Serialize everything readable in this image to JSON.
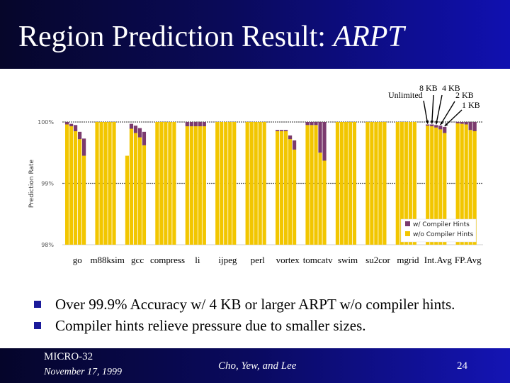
{
  "slide": {
    "title_main": "Region Prediction Result: ",
    "title_italic": "ARPT",
    "bullets": [
      "Over 99.9% Accuracy w/ 4 KB or larger ARPT w/o compiler hints.",
      "Compiler hints relieve pressure due to smaller sizes."
    ],
    "footer": {
      "conference": "MICRO-32",
      "date": "November 17, 1999",
      "authors": "Cho, Yew, and Lee",
      "page": "24"
    }
  },
  "colors": {
    "without_hints": "#F2C600",
    "with_hints": "#7B3B6E",
    "title_bg": "#0A0A5A"
  },
  "chart_data": {
    "type": "bar",
    "stacked": true,
    "ylabel": "Prediction Rate",
    "ylim": [
      98,
      100
    ],
    "yticks": [
      "98%",
      "99%",
      "100%"
    ],
    "size_labels": [
      "Unlimited",
      "8 KB",
      "4 KB",
      "2 KB",
      "1 KB"
    ],
    "categories": [
      "go",
      "m88ksim",
      "gcc",
      "compress",
      "li",
      "ijpeg",
      "perl",
      "vortex",
      "tomcatv",
      "swim",
      "su2cor",
      "mgrid",
      "Int.Avg",
      "FP.Avg"
    ],
    "series": [
      {
        "name": "w/o Compiler Hints",
        "values": [
          [
            99.96,
            99.93,
            99.85,
            99.72,
            99.45
          ],
          [
            100,
            100,
            100,
            100,
            100
          ],
          [
            99.45,
            99.89,
            99.82,
            99.75,
            99.62
          ],
          [
            100,
            100,
            100,
            100,
            100
          ],
          [
            99.93,
            99.93,
            99.93,
            99.93,
            99.93
          ],
          [
            100,
            100,
            100,
            100,
            100
          ],
          [
            100,
            100,
            100,
            100,
            100
          ],
          [
            99.85,
            99.85,
            99.85,
            99.72,
            99.55
          ],
          [
            99.95,
            99.95,
            99.95,
            99.5,
            99.37
          ],
          [
            100,
            100,
            100,
            100,
            100
          ],
          [
            100,
            100,
            100,
            100,
            100
          ],
          [
            100,
            100,
            100,
            100,
            100
          ],
          [
            99.94,
            99.93,
            99.91,
            99.88,
            99.82
          ],
          [
            99.98,
            99.97,
            99.96,
            99.87,
            99.85
          ]
        ]
      },
      {
        "name": "w/ Compiler Hints",
        "values": [
          [
            0.04,
            0.04,
            0.1,
            0.12,
            0.28
          ],
          [
            0,
            0,
            0,
            0,
            0
          ],
          [
            0.0,
            0.08,
            0.12,
            0.15,
            0.22
          ],
          [
            0,
            0,
            0,
            0,
            0
          ],
          [
            0.07,
            0.07,
            0.07,
            0.07,
            0.07
          ],
          [
            0,
            0,
            0,
            0,
            0
          ],
          [
            0,
            0,
            0,
            0,
            0
          ],
          [
            0.02,
            0.02,
            0.02,
            0.06,
            0.15
          ],
          [
            0.05,
            0.05,
            0.05,
            0.5,
            0.63
          ],
          [
            0,
            0,
            0,
            0,
            0
          ],
          [
            0,
            0,
            0,
            0,
            0
          ],
          [
            0,
            0,
            0,
            0,
            0
          ],
          [
            0.02,
            0.03,
            0.04,
            0.06,
            0.1
          ],
          [
            0.02,
            0.03,
            0.04,
            0.13,
            0.15
          ]
        ]
      }
    ],
    "legend_position": "bottom-right",
    "grid": true
  }
}
